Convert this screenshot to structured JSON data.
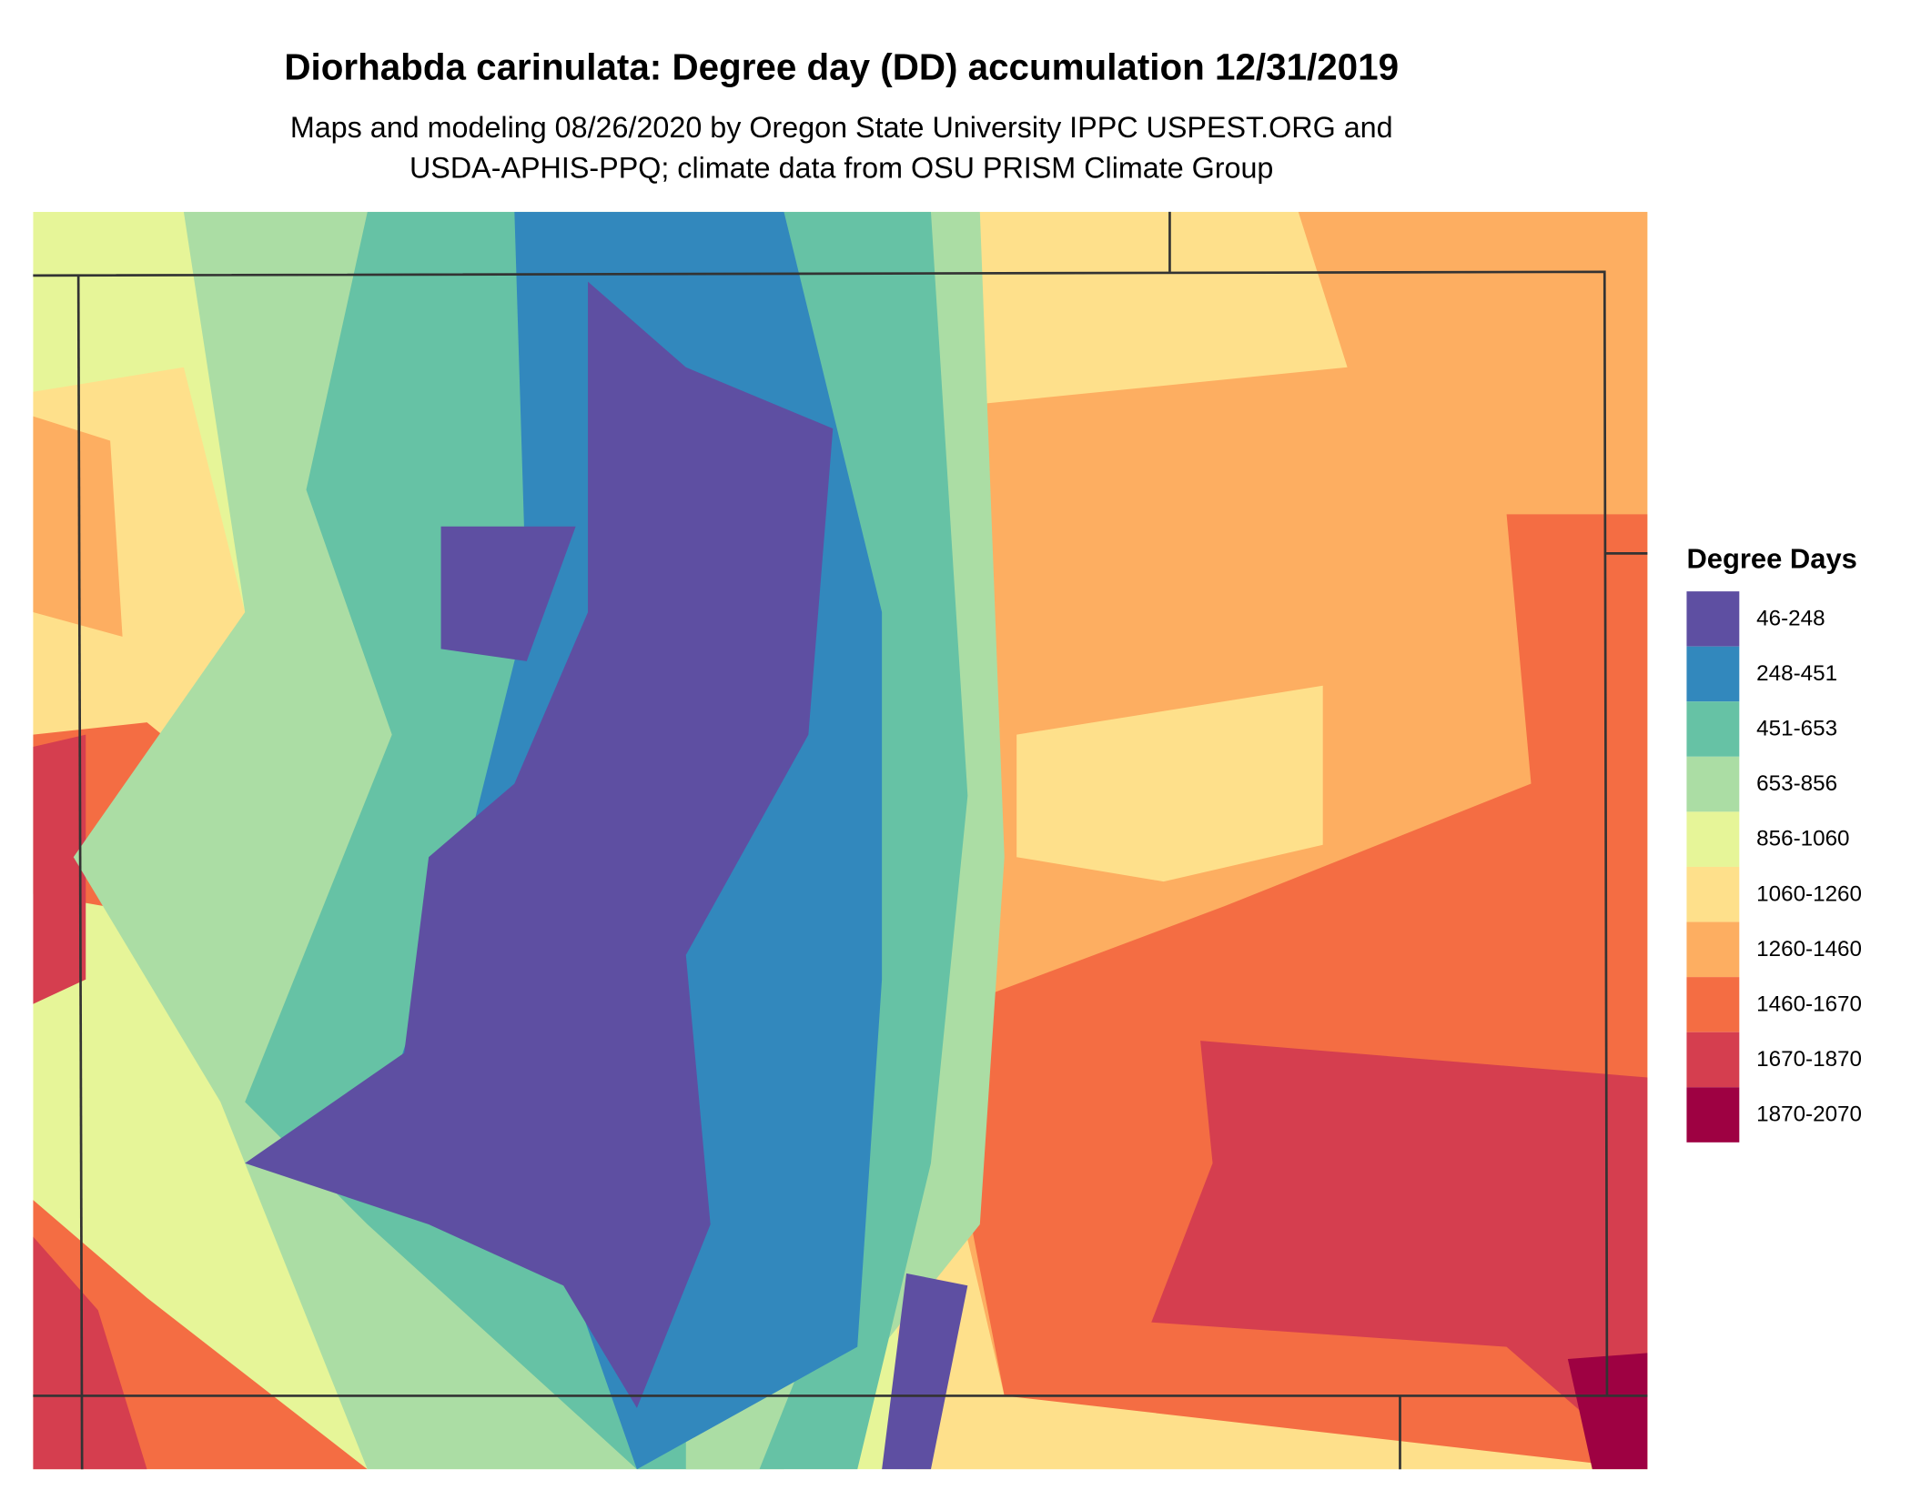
{
  "header": {
    "title": "Diorhabda carinulata: Degree day (DD) accumulation 12/31/2019",
    "subtitle_lines": [
      "Maps and modeling 08/26/2020 by Oregon State University IPPC USPEST.ORG and",
      "USDA-APHIS-PPQ; climate data from OSU PRISM Climate Group"
    ]
  },
  "legend": {
    "title": "Degree Days",
    "items": [
      {
        "label": "46-248",
        "color": "#5e4fa2"
      },
      {
        "label": "248-451",
        "color": "#3288bd"
      },
      {
        "label": "451-653",
        "color": "#66c2a5"
      },
      {
        "label": "653-856",
        "color": "#abdda4"
      },
      {
        "label": "856-1060",
        "color": "#e6f598"
      },
      {
        "label": "1060-1260",
        "color": "#fee08b"
      },
      {
        "label": "1260-1460",
        "color": "#fdae61"
      },
      {
        "label": "1460-1670",
        "color": "#f46d43"
      },
      {
        "label": "1670-1870",
        "color": "#d53e4f"
      },
      {
        "label": "1870-2070",
        "color": "#9e0142"
      }
    ]
  }
}
